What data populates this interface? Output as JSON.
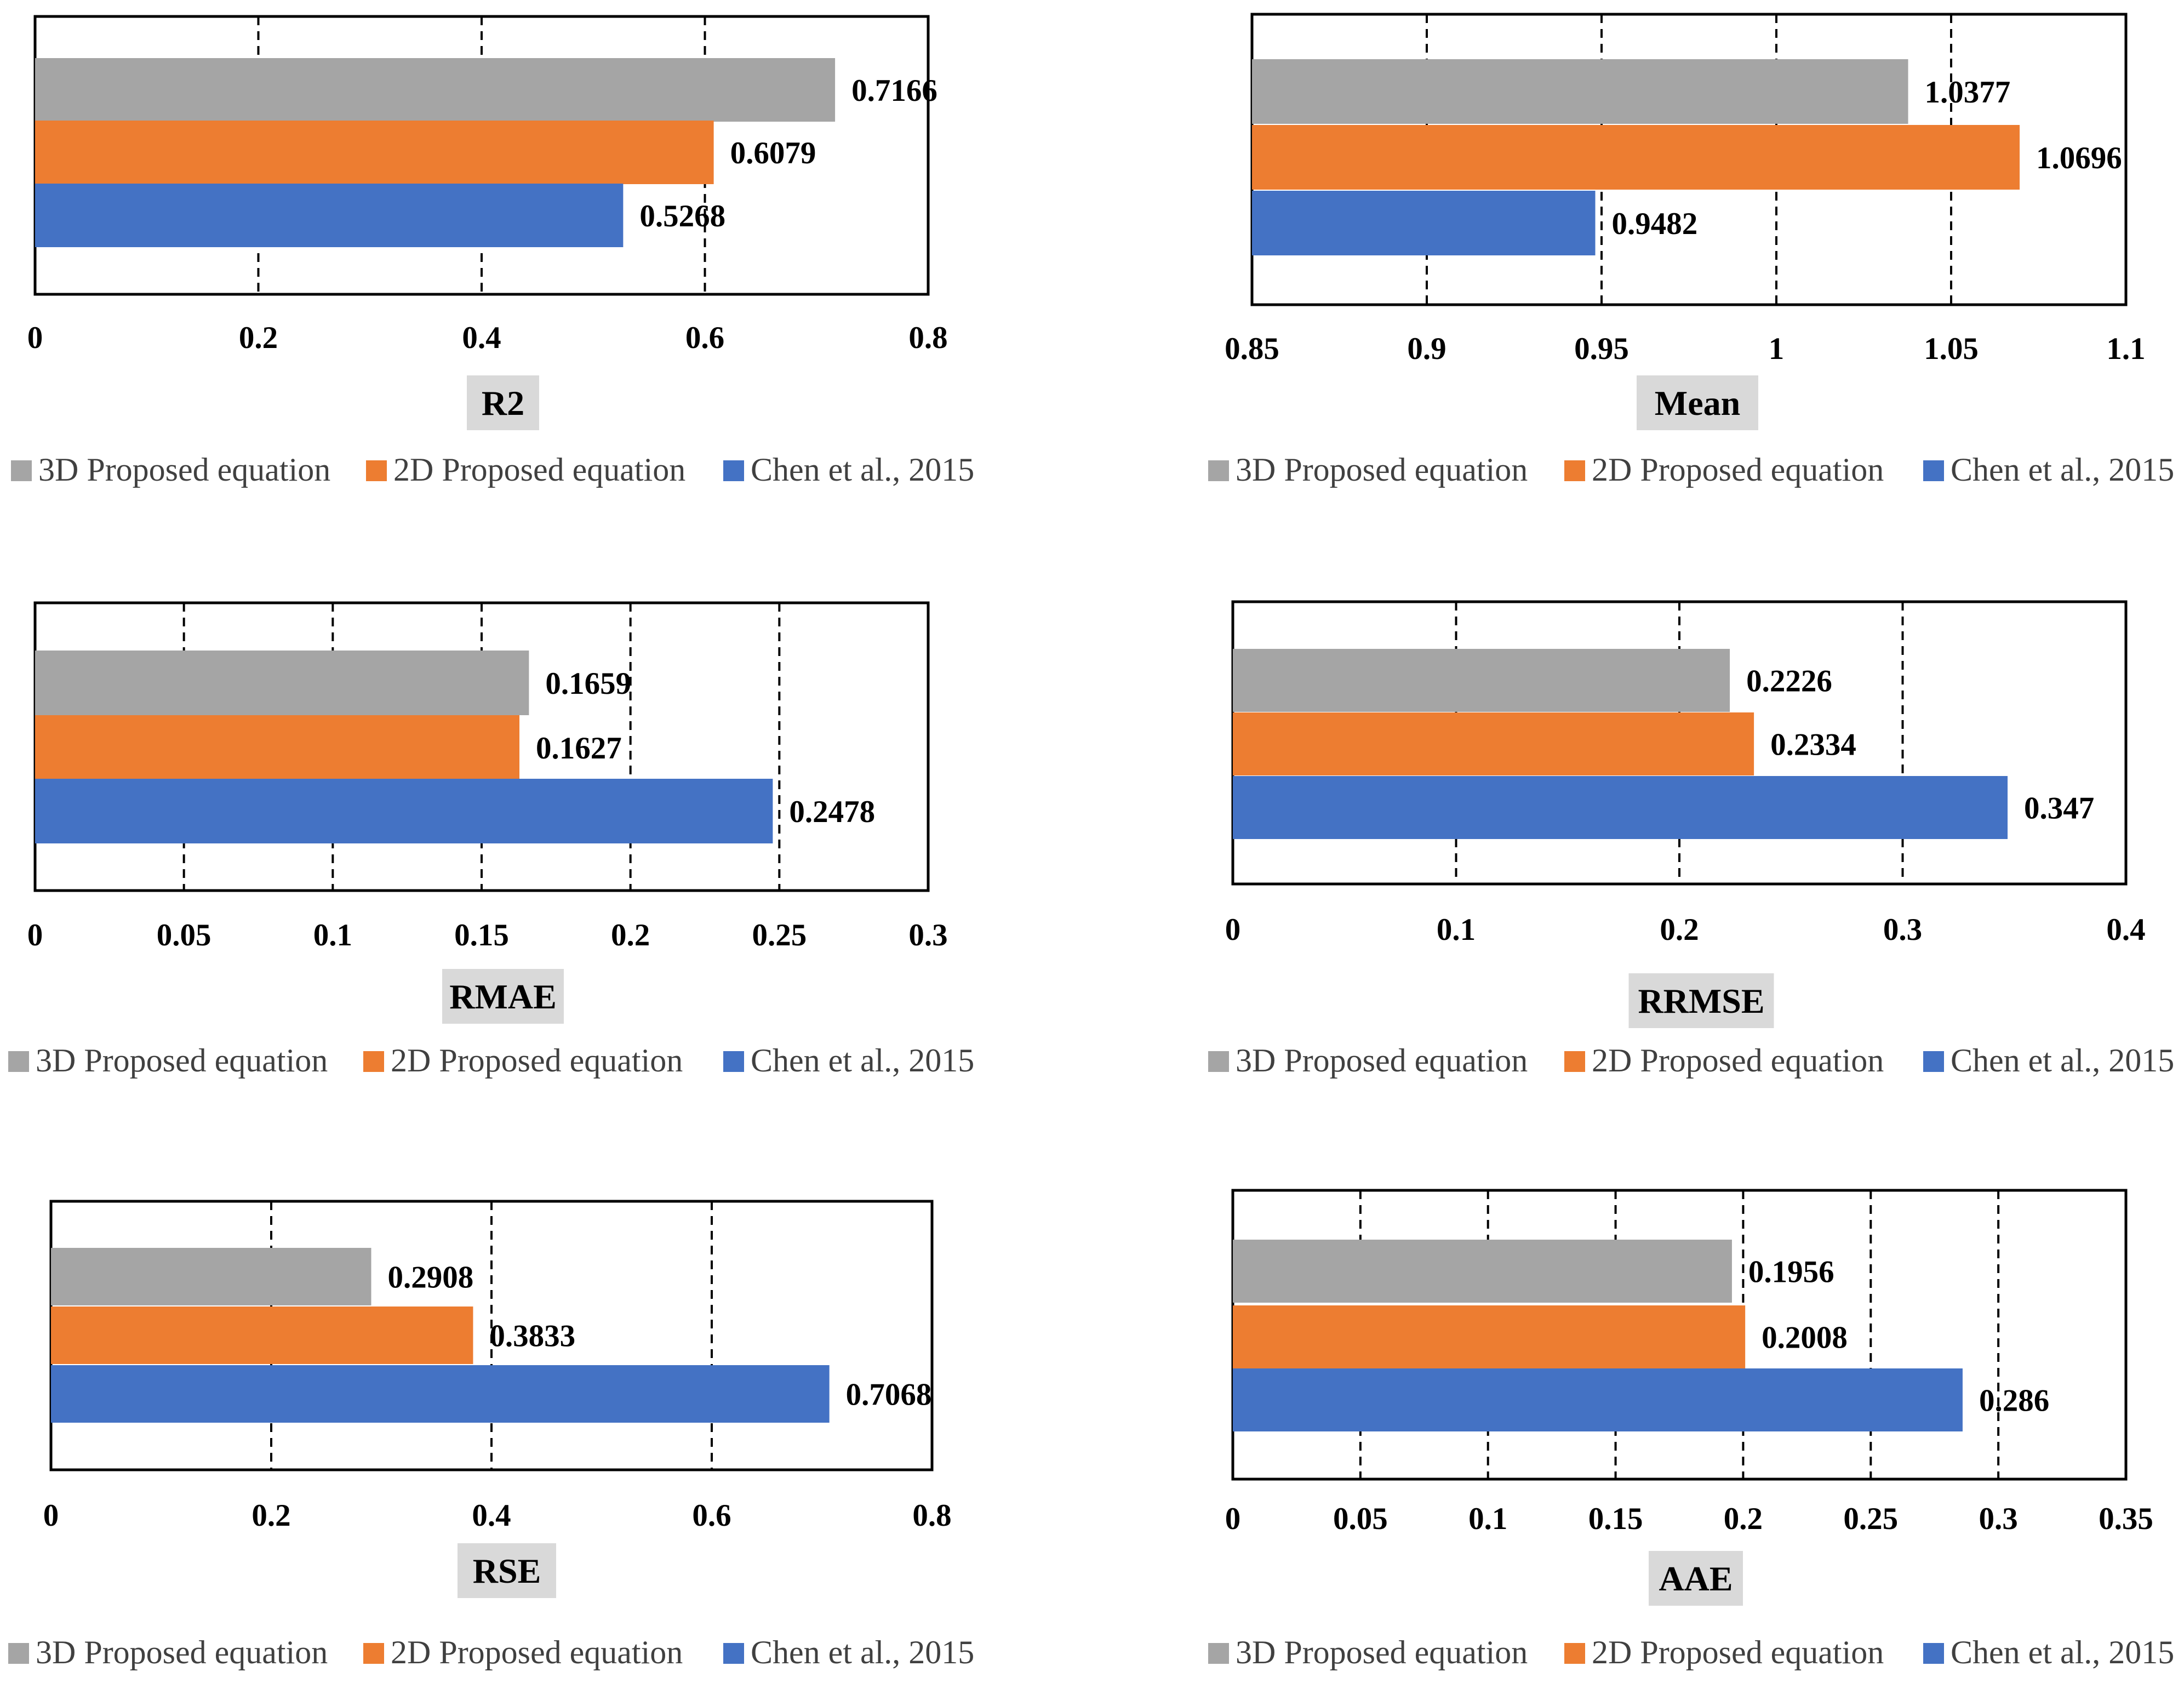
{
  "colors": {
    "three_d": "#a5a5a5",
    "two_d": "#ed7d31",
    "chen": "#4472c4",
    "axis_title_bg": "#d9d9d9",
    "frame": "#000000"
  },
  "legend": [
    {
      "label": "3D Proposed equation",
      "color": "#a5a5a5"
    },
    {
      "label": "2D Proposed equation",
      "color": "#ed7d31"
    },
    {
      "label": "Chen et al., 2015",
      "color": "#4472c4"
    }
  ],
  "chart_data": [
    {
      "type": "bar",
      "orientation": "horizontal",
      "metric": "R2",
      "xlabel": "R2",
      "xlim": [
        0,
        0.8
      ],
      "ticks": [
        "0",
        "0.2",
        "0.4",
        "0.6",
        "0.8"
      ],
      "grid": true,
      "series": [
        {
          "name": "3D Proposed equation",
          "value": 0.7166,
          "label": "0.7166"
        },
        {
          "name": "2D Proposed equation",
          "value": 0.6079,
          "label": "0.6079"
        },
        {
          "name": "Chen et al., 2015",
          "value": 0.5268,
          "label": "0.5268"
        }
      ]
    },
    {
      "type": "bar",
      "orientation": "horizontal",
      "metric": "Mean",
      "xlabel": "Mean",
      "xlim": [
        0.85,
        1.1
      ],
      "ticks": [
        "0.85",
        "0.9",
        "0.95",
        "1",
        "1.05",
        "1.1"
      ],
      "grid": true,
      "series": [
        {
          "name": "3D Proposed equation",
          "value": 1.0377,
          "label": "1.0377"
        },
        {
          "name": "2D Proposed equation",
          "value": 1.0696,
          "label": "1.0696"
        },
        {
          "name": "Chen et al., 2015",
          "value": 0.9482,
          "label": "0.9482"
        }
      ]
    },
    {
      "type": "bar",
      "orientation": "horizontal",
      "metric": "RMAE",
      "xlabel": "RMAE",
      "xlim": [
        0,
        0.3
      ],
      "ticks": [
        "0",
        "0.05",
        "0.1",
        "0.15",
        "0.2",
        "0.25",
        "0.3"
      ],
      "grid": true,
      "series": [
        {
          "name": "3D Proposed equation",
          "value": 0.1659,
          "label": "0.1659"
        },
        {
          "name": "2D Proposed equation",
          "value": 0.1627,
          "label": "0.1627"
        },
        {
          "name": "Chen et al., 2015",
          "value": 0.2478,
          "label": "0.2478"
        }
      ]
    },
    {
      "type": "bar",
      "orientation": "horizontal",
      "metric": "RRMSE",
      "xlabel": "RRMSE",
      "xlim": [
        0,
        0.4
      ],
      "ticks": [
        "0",
        "0.1",
        "0.2",
        "0.3",
        "0.4"
      ],
      "grid": true,
      "series": [
        {
          "name": "3D Proposed equation",
          "value": 0.2226,
          "label": "0.2226"
        },
        {
          "name": "2D Proposed equation",
          "value": 0.2334,
          "label": "0.2334"
        },
        {
          "name": "Chen et al., 2015",
          "value": 0.347,
          "label": "0.347"
        }
      ]
    },
    {
      "type": "bar",
      "orientation": "horizontal",
      "metric": "RSE",
      "xlabel": "RSE",
      "xlim": [
        0,
        0.8
      ],
      "ticks": [
        "0",
        "0.2",
        "0.4",
        "0.6",
        "0.8"
      ],
      "grid": true,
      "series": [
        {
          "name": "3D Proposed equation",
          "value": 0.2908,
          "label": "0.2908"
        },
        {
          "name": "2D Proposed equation",
          "value": 0.3833,
          "label": "0.3833"
        },
        {
          "name": "Chen et al., 2015",
          "value": 0.7068,
          "label": "0.7068"
        }
      ]
    },
    {
      "type": "bar",
      "orientation": "horizontal",
      "metric": "AAE",
      "xlabel": "AAE",
      "xlim": [
        0,
        0.35
      ],
      "ticks": [
        "0",
        "0.05",
        "0.1",
        "0.15",
        "0.2",
        "0.25",
        "0.3",
        "0.35"
      ],
      "grid": true,
      "series": [
        {
          "name": "3D Proposed equation",
          "value": 0.1956,
          "label": "0.1956"
        },
        {
          "name": "2D Proposed equation",
          "value": 0.2008,
          "label": "0.2008"
        },
        {
          "name": "Chen et al., 2015",
          "value": 0.286,
          "label": "0.286"
        }
      ]
    }
  ]
}
